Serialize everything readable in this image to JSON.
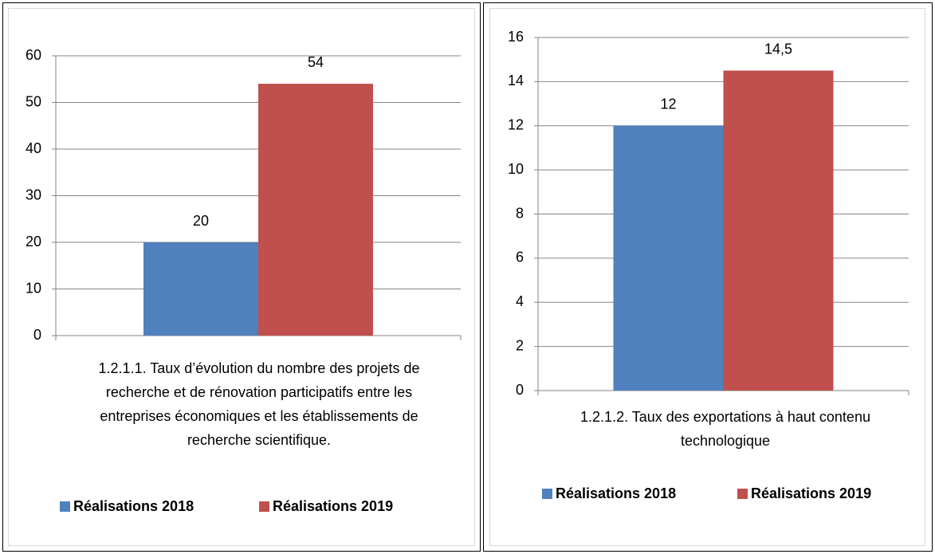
{
  "chart_data": [
    {
      "type": "bar",
      "categories": [
        "1.2.1.1. Taux d’évolution du nombre des projets de recherche et de rénovation participatifs entre les entreprises économiques et les établissements de recherche scientifique."
      ],
      "series": [
        {
          "name": "Réalisations 2018",
          "color": "#4f81bd",
          "values": [
            20
          ]
        },
        {
          "name": "Réalisations 2019",
          "color": "#c0504d",
          "values": [
            54
          ]
        }
      ],
      "ylim": [
        0,
        60
      ],
      "yticks": [
        0,
        10,
        20,
        30,
        40,
        50,
        60
      ],
      "grid": true,
      "legend": "bottom"
    },
    {
      "type": "bar",
      "categories": [
        "1.2.1.2. Taux des exportations à haut contenu technologique"
      ],
      "series": [
        {
          "name": "Réalisations 2018",
          "color": "#4f81bd",
          "values": [
            12
          ]
        },
        {
          "name": "Réalisations 2019",
          "color": "#c0504d",
          "values": [
            14.5
          ],
          "value_labels": [
            "14,5"
          ]
        }
      ],
      "ylim": [
        0,
        16
      ],
      "yticks": [
        0,
        2,
        4,
        6,
        8,
        10,
        12,
        14,
        16
      ],
      "grid": true,
      "legend": "bottom"
    }
  ]
}
